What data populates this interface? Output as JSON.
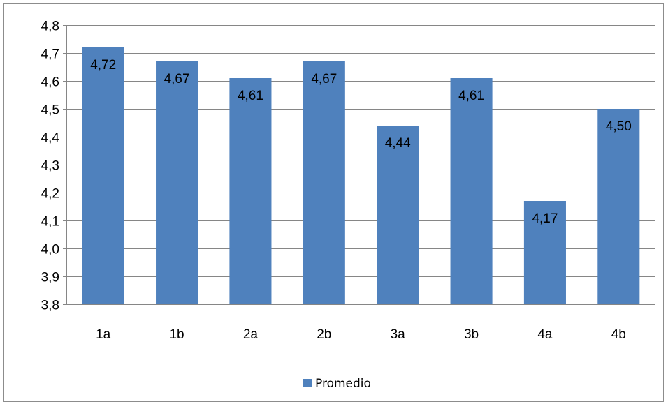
{
  "chart_data": {
    "type": "bar",
    "categories": [
      "1a",
      "1b",
      "2a",
      "2b",
      "3a",
      "3b",
      "4a",
      "4b"
    ],
    "series": [
      {
        "name": "Promedio",
        "values": [
          4.72,
          4.67,
          4.61,
          4.67,
          4.44,
          4.61,
          4.17,
          4.5
        ],
        "labels": [
          "4,72",
          "4,67",
          "4,61",
          "4,67",
          "4,44",
          "4,61",
          "4,17",
          "4,50"
        ],
        "color": "#4f81bd"
      }
    ],
    "y_ticks": [
      "3,8",
      "3,9",
      "4,0",
      "4,1",
      "4,2",
      "4,3",
      "4,4",
      "4,5",
      "4,6",
      "4,7",
      "4,8"
    ],
    "ylim": [
      3.8,
      4.8
    ],
    "ystep": 0.1,
    "title": "",
    "xlabel": "",
    "ylabel": "",
    "grid": true,
    "legend": "bottom"
  }
}
